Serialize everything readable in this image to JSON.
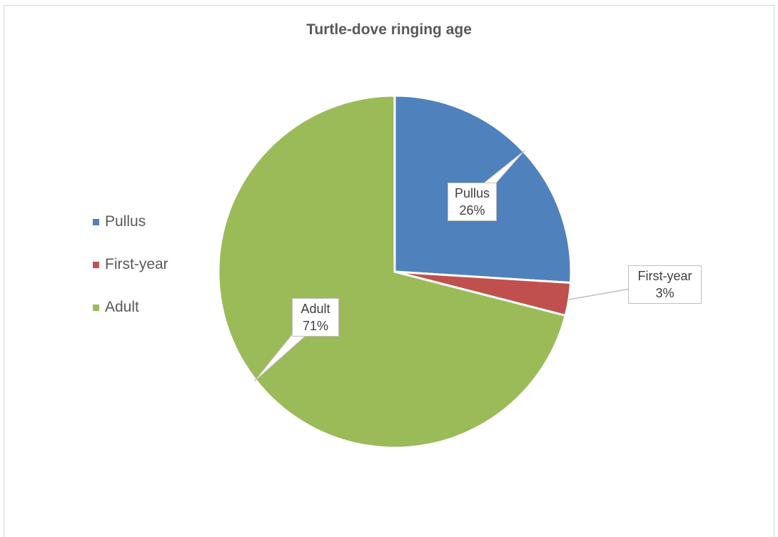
{
  "chart_data": {
    "type": "pie",
    "title": "Turtle-dove ringing age",
    "categories": [
      "Pullus",
      "First-year",
      "Adult"
    ],
    "values": [
      26,
      3,
      71
    ],
    "unit": "%",
    "colors": [
      "#4f81bd",
      "#c0504d",
      "#9bbb59"
    ],
    "legend_position": "left",
    "data_labels": [
      {
        "category": "Pullus",
        "text": "26%"
      },
      {
        "category": "First-year",
        "text": "3%"
      },
      {
        "category": "Adult",
        "text": "71%"
      }
    ]
  }
}
